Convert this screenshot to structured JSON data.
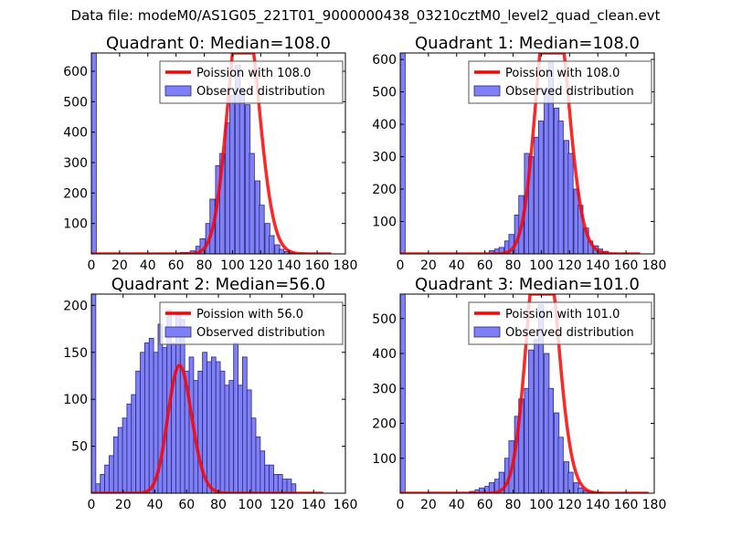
{
  "suptitle": "Data file: modeM0/AS1G05_221T01_9000000438_03210cztM0_level2_quad_clean.evt",
  "colors": {
    "bar_fill": "#7f7ff8",
    "bar_edge": "#2a2a7a",
    "poisson": "#ff0000",
    "axis": "#000000",
    "legend_edge": "#555555"
  },
  "chart_data": [
    {
      "type": "bar",
      "title": "Quadrant 0: Median=108.0",
      "xlim": [
        0,
        180
      ],
      "ylim": [
        0,
        660
      ],
      "xticks": [
        0,
        20,
        40,
        60,
        80,
        100,
        120,
        140,
        160,
        180
      ],
      "yticks": [
        100,
        200,
        300,
        400,
        500,
        600
      ],
      "xtick_labels": [
        "0",
        "20",
        "40",
        "60",
        "80",
        "100",
        "120",
        "140",
        "160",
        "180"
      ],
      "ytick_labels": [
        "100",
        "200",
        "300",
        "400",
        "500",
        "600"
      ],
      "bin_width": 3.5,
      "bins_start": [
        0,
        63,
        67,
        70,
        74,
        77,
        81,
        84,
        88,
        91,
        95,
        98,
        102,
        105,
        109,
        112,
        116,
        119,
        123,
        126,
        130,
        133,
        137,
        140
      ],
      "counts": [
        660,
        5,
        5,
        10,
        25,
        50,
        100,
        180,
        290,
        330,
        430,
        520,
        620,
        540,
        490,
        330,
        240,
        160,
        100,
        60,
        30,
        15,
        8,
        4
      ],
      "poisson_lambda": 108.0,
      "poisson_scale": 22500,
      "poisson_range": [
        0,
        170
      ],
      "legend": {
        "position": "top-right",
        "entries": [
          "Poission with 108.0",
          "Observed distribution"
        ]
      }
    },
    {
      "type": "bar",
      "title": "Quadrant 1: Median=108.0",
      "xlim": [
        0,
        180
      ],
      "ylim": [
        0,
        620
      ],
      "xticks": [
        0,
        20,
        40,
        60,
        80,
        100,
        120,
        140,
        160,
        180
      ],
      "yticks": [
        100,
        200,
        300,
        400,
        500,
        600
      ],
      "xtick_labels": [
        "0",
        "20",
        "40",
        "60",
        "80",
        "100",
        "120",
        "140",
        "160",
        "180"
      ],
      "ytick_labels": [
        "100",
        "200",
        "300",
        "400",
        "500",
        "600"
      ],
      "bin_width": 3.5,
      "bins_start": [
        0,
        63,
        67,
        70,
        74,
        77,
        81,
        84,
        88,
        91,
        95,
        98,
        102,
        105,
        109,
        112,
        116,
        119,
        123,
        126,
        130,
        133,
        137,
        140,
        144
      ],
      "counts": [
        620,
        10,
        15,
        20,
        40,
        60,
        120,
        180,
        310,
        300,
        360,
        410,
        510,
        590,
        450,
        410,
        350,
        310,
        200,
        150,
        80,
        40,
        25,
        15,
        8
      ],
      "poisson_lambda": 108.0,
      "poisson_scale": 23000,
      "poisson_range": [
        0,
        170
      ],
      "legend": {
        "position": "top-right",
        "entries": [
          "Poission with 108.0",
          "Observed distribution"
        ]
      }
    },
    {
      "type": "bar",
      "title": "Quadrant 2: Median=56.0",
      "xlim": [
        0,
        160
      ],
      "ylim": [
        0,
        212
      ],
      "xticks": [
        0,
        20,
        40,
        60,
        80,
        100,
        120,
        140,
        160
      ],
      "yticks": [
        50,
        100,
        150,
        200
      ],
      "xtick_labels": [
        "0",
        "20",
        "40",
        "60",
        "80",
        "100",
        "120",
        "140",
        "160"
      ],
      "ytick_labels": [
        "50",
        "100",
        "150",
        "200"
      ],
      "bin_width": 2.8,
      "bins_start": [
        0,
        2.8,
        5.6,
        8.4,
        11.2,
        14,
        16.8,
        19.6,
        22.4,
        25.2,
        28,
        30.8,
        33.6,
        36.4,
        39.2,
        42,
        44.8,
        47.6,
        50.4,
        53.2,
        56,
        58.8,
        61.6,
        64.4,
        67.2,
        70,
        72.8,
        75.6,
        78.4,
        81.2,
        84,
        86.8,
        89.6,
        92.4,
        95.2,
        98,
        100.8,
        103.6,
        106.4,
        109.2,
        112,
        114.8,
        117.6,
        120.4,
        123.2,
        126
      ],
      "counts": [
        212,
        10,
        20,
        30,
        40,
        60,
        70,
        80,
        95,
        105,
        130,
        150,
        160,
        165,
        150,
        180,
        155,
        195,
        160,
        190,
        185,
        130,
        145,
        120,
        130,
        150,
        140,
        145,
        140,
        130,
        115,
        120,
        160,
        115,
        145,
        110,
        80,
        60,
        45,
        30,
        30,
        20,
        20,
        15,
        15,
        10
      ],
      "poisson_lambda": 56.0,
      "poisson_scale": 2550,
      "poisson_range": [
        0,
        146
      ],
      "legend": {
        "position": "top-right",
        "entries": [
          "Poission with 56.0",
          "Observed distribution"
        ]
      }
    },
    {
      "type": "bar",
      "title": "Quadrant 3: Median=101.0",
      "xlim": [
        0,
        180
      ],
      "ylim": [
        0,
        570
      ],
      "xticks": [
        0,
        20,
        40,
        60,
        80,
        100,
        120,
        140,
        160,
        180
      ],
      "yticks": [
        100,
        200,
        300,
        400,
        500
      ],
      "xtick_labels": [
        "0",
        "20",
        "40",
        "60",
        "80",
        "100",
        "120",
        "140",
        "160",
        "180"
      ],
      "ytick_labels": [
        "100",
        "200",
        "300",
        "400",
        "500"
      ],
      "bin_width": 3.5,
      "bins_start": [
        0,
        49,
        53,
        56,
        60,
        63,
        67,
        70,
        74,
        77,
        81,
        84,
        88,
        91,
        95,
        98,
        102,
        105,
        109,
        112,
        116,
        119,
        123,
        126,
        130,
        133,
        137,
        140
      ],
      "counts": [
        570,
        5,
        10,
        15,
        20,
        30,
        40,
        60,
        100,
        150,
        220,
        270,
        300,
        410,
        440,
        540,
        400,
        300,
        230,
        160,
        90,
        60,
        30,
        15,
        8,
        5,
        3,
        2
      ],
      "poisson_lambda": 101.0,
      "poisson_scale": 21000,
      "poisson_range": [
        0,
        176
      ],
      "legend": {
        "position": "top-right",
        "entries": [
          "Poission with 101.0",
          "Observed distribution"
        ]
      }
    }
  ]
}
